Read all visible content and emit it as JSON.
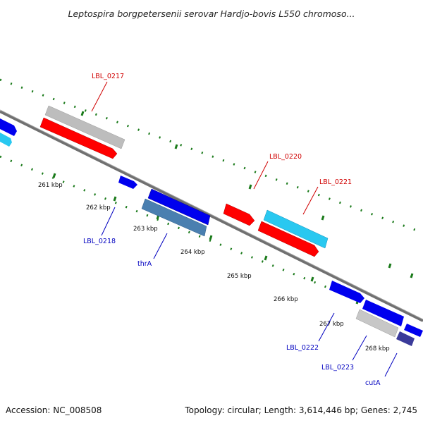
{
  "title": "Leptospira borgpetersenii serovar Hardjo-bovis L550 chromoso...",
  "footer": {
    "accession": "Accession: NC_008508",
    "summary": "Topology: circular; Length: 3,614,446 bp; Genes: 2,745"
  },
  "colors": {
    "backbone": "#7f7f7f",
    "tick": "#1a7a1a",
    "label_top": "#d00000",
    "label_bottom": "#0000c0",
    "gene_grey": "#bdbdbd",
    "gene_red": "#ff0000",
    "gene_blue": "#0000ee",
    "gene_cyan": "#29c8f0",
    "gene_steel": "#4a7fb0",
    "gene_darkblue": "#3b3b9a"
  },
  "ticks": [
    "261 kbp",
    "262 kbp",
    "263 kbp",
    "264 kbp",
    "265 kbp",
    "266 kbp",
    "267 kbp",
    "268 kbp"
  ],
  "gene_labels": {
    "top": [
      "LBL_0217",
      "LBL_0220",
      "LBL_0221"
    ],
    "bottom": [
      "LBL_0218",
      "thrA",
      "LBL_0222",
      "LBL_0223",
      "cutA"
    ]
  }
}
